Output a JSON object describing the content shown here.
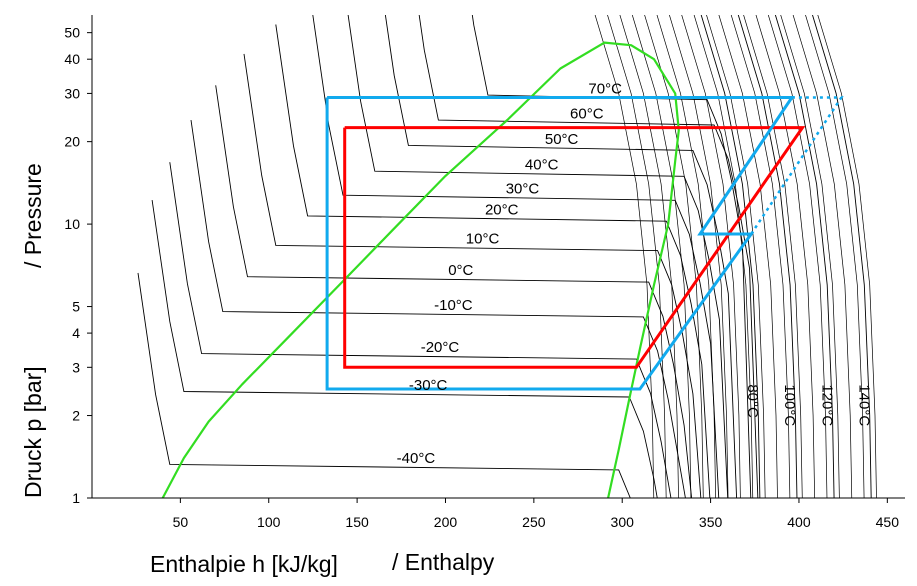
{
  "chart_data": {
    "type": "line",
    "title": "",
    "xlabel": "Enthalpie h [kJ/kg]",
    "xlabel_en": "/ Enthalpy",
    "ylabel": "Druck p [bar]",
    "ylabel_en": "/ Pressure",
    "xlim": [
      0,
      460
    ],
    "ylim": [
      1,
      58
    ],
    "yscale": "log",
    "x_ticks": [
      50,
      100,
      150,
      200,
      250,
      300,
      350,
      400,
      450
    ],
    "y_ticks": [
      1,
      2,
      3,
      4,
      5,
      10,
      20,
      30,
      40,
      50
    ],
    "grid": false,
    "saturation_dome": {
      "color": "#33dd22",
      "points": [
        [
          40,
          1
        ],
        [
          52,
          1.4
        ],
        [
          66,
          1.9
        ],
        [
          85,
          2.6
        ],
        [
          110,
          3.8
        ],
        [
          140,
          6
        ],
        [
          170,
          9.5
        ],
        [
          200,
          15
        ],
        [
          235,
          24
        ],
        [
          265,
          37
        ],
        [
          290,
          46
        ],
        [
          305,
          45
        ],
        [
          318,
          40
        ],
        [
          330,
          30
        ],
        [
          332,
          22
        ],
        [
          330,
          17
        ],
        [
          326,
          10
        ],
        [
          318,
          6
        ],
        [
          310,
          3.5
        ],
        [
          304,
          2.3
        ],
        [
          298,
          1.5
        ],
        [
          292,
          1
        ]
      ]
    },
    "isotherms": [
      {
        "label": "70°C",
        "kind": "two-phase",
        "p": 29,
        "h_liq": 224,
        "h_vap": 348,
        "slope": 1.001
      },
      {
        "label": "60°C",
        "kind": "two-phase",
        "p": 23.5,
        "h_liq": 196,
        "h_vap": 352,
        "slope": 0.999
      },
      {
        "label": "50°C",
        "kind": "two-phase",
        "p": 19,
        "h_liq": 179,
        "h_vap": 340,
        "slope": 0.998
      },
      {
        "label": "40°C",
        "kind": "two-phase",
        "p": 15.3,
        "h_liq": 160,
        "h_vap": 335,
        "slope": 0.997
      },
      {
        "label": "30°C",
        "kind": "two-phase",
        "p": 12.5,
        "h_liq": 142,
        "h_vap": 330,
        "slope": 0.997
      },
      {
        "label": "20°C",
        "kind": "two-phase",
        "p": 10.5,
        "h_liq": 122,
        "h_vap": 325,
        "slope": 0.996
      },
      {
        "label": "10°C",
        "kind": "two-phase",
        "p": 8.2,
        "h_liq": 104,
        "h_vap": 320,
        "slope": 0.996
      },
      {
        "label": "0°C",
        "kind": "two-phase",
        "p": 6.3,
        "h_liq": 88,
        "h_vap": 315,
        "slope": 0.995
      },
      {
        "label": "-10°C",
        "kind": "two-phase",
        "p": 4.7,
        "h_liq": 74,
        "h_vap": 312,
        "slope": 0.995
      },
      {
        "label": "-20°C",
        "kind": "two-phase",
        "p": 3.3,
        "h_liq": 62,
        "h_vap": 308,
        "slope": 0.994
      },
      {
        "label": "-30°C",
        "kind": "two-phase",
        "p": 2.4,
        "h_liq": 52,
        "h_vap": 304,
        "slope": 0.994
      },
      {
        "label": "-40°C",
        "kind": "two-phase",
        "p": 1.3,
        "h_liq": 44,
        "h_vap": 298,
        "slope": 0.994
      },
      {
        "label": "80°C",
        "kind": "superheat",
        "h_bottom": 378
      },
      {
        "label": "100°C",
        "kind": "superheat",
        "h_bottom": 399
      },
      {
        "label": "120°C",
        "kind": "superheat",
        "h_bottom": 420
      },
      {
        "label": "140°C",
        "kind": "superheat",
        "h_bottom": 441
      }
    ],
    "isotherm_color": "#000000",
    "series": [
      {
        "color": "#ff0000",
        "style": "solid",
        "points": [
          [
            143,
            22.5
          ],
          [
            402,
            22.5
          ],
          [
            308,
            3
          ],
          [
            143,
            3
          ],
          [
            143,
            22.5
          ]
        ]
      },
      {
        "color": "#11aaee",
        "style": "solid",
        "points": [
          [
            133,
            29
          ],
          [
            396,
            29
          ],
          [
            344,
            9.2
          ],
          [
            373,
            9.2
          ],
          [
            310,
            2.5
          ],
          [
            133,
            2.5
          ],
          [
            133,
            29
          ]
        ]
      },
      {
        "color": "#11aaee",
        "style": "dotted",
        "points": [
          [
            396,
            29
          ],
          [
            424,
            29
          ],
          [
            373,
            9.2
          ]
        ]
      }
    ]
  }
}
